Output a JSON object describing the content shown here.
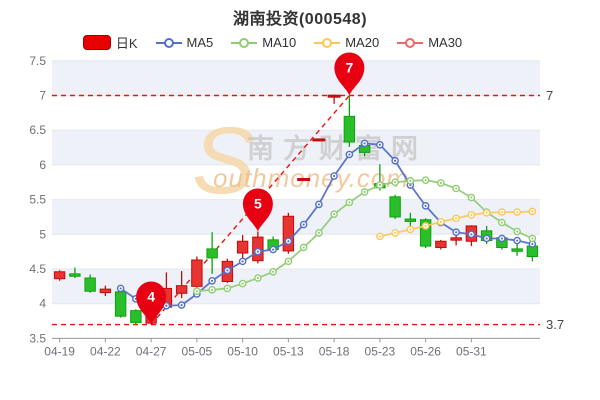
{
  "header": {
    "title": "湖南投资(000548)"
  },
  "legend": {
    "items": [
      {
        "id": "kline",
        "label": "日K",
        "type": "candlestick",
        "color": "#e60000"
      },
      {
        "id": "ma5",
        "label": "MA5",
        "type": "line",
        "color": "#5470c6"
      },
      {
        "id": "ma10",
        "label": "MA10",
        "type": "line",
        "color": "#91cc75"
      },
      {
        "id": "ma20",
        "label": "MA20",
        "type": "line",
        "color": "#fac858"
      },
      {
        "id": "ma30",
        "label": "MA30",
        "type": "line",
        "color": "#ee6666"
      }
    ]
  },
  "watermark": {
    "initial": "S",
    "cn": "南方财富网",
    "en": "outhmoney.com"
  },
  "colors": {
    "up_fill": "#e83333",
    "up_border": "#c00d0d",
    "down_fill": "#2abf2a",
    "down_border": "#0fa00f",
    "marker": "#e60012",
    "ref_line": "#ee1111",
    "band": "#eef1f8",
    "grid": "#e3e7f0",
    "axis": "#999999",
    "tick_label": "#6e7079",
    "annotation": "#444444"
  },
  "chart_data": {
    "type": "candlestick",
    "title": "湖南投资(000548)",
    "ylim": [
      3.5,
      7.5
    ],
    "y_ticks": [
      3.5,
      4,
      4.5,
      5,
      5.5,
      6,
      6.5,
      7,
      7.5
    ],
    "x_axis_labels": [
      "04-19",
      "04-22",
      "04-27",
      "05-05",
      "05-10",
      "05-13",
      "05-18",
      "05-23",
      "05-26",
      "05-31"
    ],
    "x_label_indices": [
      0,
      3,
      6,
      9,
      12,
      15,
      18,
      21,
      24,
      27
    ],
    "grid": "striped-horizontal",
    "legend_position": "top",
    "dates": [
      "04-19",
      "04-20",
      "04-21",
      "04-22",
      "04-25",
      "04-26",
      "04-27",
      "04-28",
      "04-29",
      "05-05",
      "05-06",
      "05-09",
      "05-10",
      "05-11",
      "05-12",
      "05-13",
      "05-16",
      "05-17",
      "05-18",
      "05-19",
      "05-20",
      "05-23",
      "05-24",
      "05-25",
      "05-26",
      "05-27",
      "05-30",
      "05-31",
      "06-01",
      "06-02",
      "06-06",
      "06-07"
    ],
    "candles": [
      {
        "d": "04-19",
        "o": 4.36,
        "c": 4.46,
        "l": 4.33,
        "h": 4.48
      },
      {
        "d": "04-20",
        "o": 4.43,
        "c": 4.42,
        "l": 4.37,
        "h": 4.52
      },
      {
        "d": "04-21",
        "o": 4.37,
        "c": 4.18,
        "l": 4.16,
        "h": 4.42
      },
      {
        "d": "04-22",
        "o": 4.16,
        "c": 4.21,
        "l": 4.11,
        "h": 4.26
      },
      {
        "d": "04-25",
        "o": 4.17,
        "c": 3.82,
        "l": 3.8,
        "h": 4.19
      },
      {
        "d": "04-26",
        "o": 3.9,
        "c": 3.73,
        "l": 3.7,
        "h": 3.92
      },
      {
        "d": "04-27",
        "o": 3.72,
        "c": 3.86,
        "l": 3.7,
        "h": 3.88
      },
      {
        "d": "04-28",
        "o": 3.95,
        "c": 4.22,
        "l": 3.92,
        "h": 4.45
      },
      {
        "d": "04-29",
        "o": 4.15,
        "c": 4.26,
        "l": 4.08,
        "h": 4.47
      },
      {
        "d": "05-05",
        "o": 4.25,
        "c": 4.63,
        "l": 4.2,
        "h": 4.68
      },
      {
        "d": "05-06",
        "o": 4.79,
        "c": 4.66,
        "l": 4.43,
        "h": 5.03
      },
      {
        "d": "05-09",
        "o": 4.32,
        "c": 4.61,
        "l": 4.3,
        "h": 4.65
      },
      {
        "d": "05-10",
        "o": 4.73,
        "c": 4.9,
        "l": 4.63,
        "h": 4.99
      },
      {
        "d": "05-11",
        "o": 4.62,
        "c": 4.96,
        "l": 4.58,
        "h": 5.04
      },
      {
        "d": "05-12",
        "o": 4.92,
        "c": 4.78,
        "l": 4.73,
        "h": 4.97
      },
      {
        "d": "05-13",
        "o": 4.76,
        "c": 5.26,
        "l": 4.72,
        "h": 5.31
      },
      {
        "d": "05-16",
        "o": 5.79,
        "c": 5.79,
        "l": 5.79,
        "h": 5.79
      },
      {
        "d": "05-17",
        "o": 6.36,
        "c": 6.36,
        "l": 6.36,
        "h": 6.36
      },
      {
        "d": "05-18",
        "o": 6.99,
        "c": 6.99,
        "l": 6.88,
        "h": 6.99
      },
      {
        "d": "05-19",
        "o": 6.7,
        "c": 6.33,
        "l": 6.26,
        "h": 7.0
      },
      {
        "d": "05-20",
        "o": 6.28,
        "c": 6.18,
        "l": 6.12,
        "h": 6.32
      },
      {
        "d": "05-23",
        "o": 5.73,
        "c": 5.67,
        "l": 5.63,
        "h": 6.01
      },
      {
        "d": "05-24",
        "o": 5.54,
        "c": 5.25,
        "l": 5.22,
        "h": 5.57
      },
      {
        "d": "05-25",
        "o": 5.22,
        "c": 5.2,
        "l": 5.07,
        "h": 5.31
      },
      {
        "d": "05-26",
        "o": 5.21,
        "c": 4.83,
        "l": 4.8,
        "h": 5.23
      },
      {
        "d": "05-27",
        "o": 4.81,
        "c": 4.9,
        "l": 4.78,
        "h": 4.92
      },
      {
        "d": "05-30",
        "o": 4.94,
        "c": 4.95,
        "l": 4.84,
        "h": 5.07
      },
      {
        "d": "05-31",
        "o": 4.9,
        "c": 5.12,
        "l": 4.83,
        "h": 5.13
      },
      {
        "d": "06-01",
        "o": 5.05,
        "c": 4.91,
        "l": 4.86,
        "h": 5.12
      },
      {
        "d": "06-02",
        "o": 4.95,
        "c": 4.81,
        "l": 4.78,
        "h": 4.99
      },
      {
        "d": "06-06",
        "o": 4.79,
        "c": 4.78,
        "l": 4.69,
        "h": 4.86
      },
      {
        "d": "06-07",
        "o": 4.83,
        "c": 4.68,
        "l": 4.61,
        "h": 4.84
      }
    ],
    "series": [
      {
        "name": "MA5",
        "color": "#5470c6",
        "values": [
          null,
          null,
          null,
          null,
          4.22,
          4.07,
          3.96,
          3.97,
          3.98,
          4.14,
          4.33,
          4.48,
          4.61,
          4.75,
          4.78,
          4.9,
          5.14,
          5.43,
          5.84,
          6.15,
          6.31,
          6.29,
          6.06,
          5.71,
          5.41,
          5.17,
          5.03,
          5.0,
          4.94,
          4.94,
          4.91,
          4.86
        ]
      },
      {
        "name": "MA10",
        "color": "#91cc75",
        "values": [
          null,
          null,
          null,
          null,
          null,
          null,
          null,
          null,
          null,
          4.18,
          4.2,
          4.22,
          4.29,
          4.37,
          4.46,
          4.61,
          4.81,
          5.02,
          5.29,
          5.46,
          5.61,
          5.71,
          5.75,
          5.77,
          5.78,
          5.74,
          5.66,
          5.53,
          5.32,
          5.17,
          5.04,
          4.94
        ]
      },
      {
        "name": "MA20",
        "color": "#fac858",
        "values": [
          null,
          null,
          null,
          null,
          null,
          null,
          null,
          null,
          null,
          null,
          null,
          null,
          null,
          null,
          null,
          null,
          null,
          null,
          null,
          null,
          null,
          4.97,
          5.02,
          5.07,
          5.12,
          5.18,
          5.23,
          5.28,
          5.31,
          5.32,
          5.32,
          5.33
        ]
      },
      {
        "name": "MA30",
        "color": "#ee6666",
        "values": []
      }
    ],
    "reference_lines": [
      {
        "value": 7,
        "label": "7"
      },
      {
        "value": 3.7,
        "label": "3.7"
      }
    ],
    "trend_line": {
      "from": {
        "date": "04-27",
        "price": 3.7
      },
      "to": {
        "date": "05-19",
        "price": 7.0
      }
    },
    "markers": [
      {
        "label": "4",
        "date": "04-27",
        "price": 3.7
      },
      {
        "label": "5",
        "date": "05-11",
        "price": 5.04
      },
      {
        "label": "7",
        "date": "05-19",
        "price": 7.0
      }
    ]
  }
}
